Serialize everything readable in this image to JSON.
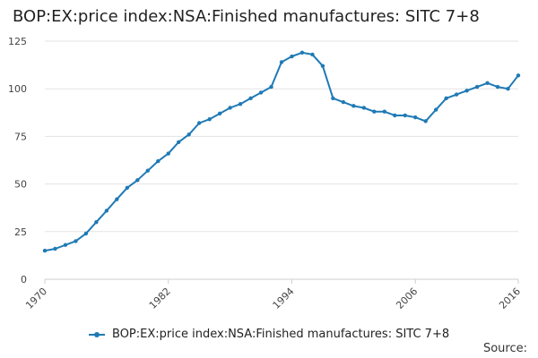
{
  "chart_data": {
    "type": "line",
    "title": "BOP:EX:price index:NSA:Finished manufactures: SITC 7+8",
    "xlabel": "",
    "ylabel": "",
    "ylim": [
      0,
      125
    ],
    "yticks": [
      0,
      25,
      50,
      75,
      100,
      125
    ],
    "xlim": [
      1970,
      2016
    ],
    "xticks": [
      1970,
      1982,
      1994,
      2006,
      2016
    ],
    "grid": true,
    "legend_position": "bottom",
    "series": [
      {
        "name": "BOP:EX:price index:NSA:Finished manufactures: SITC 7+8",
        "color": "#1f7ab5",
        "x": [
          1970,
          1971,
          1972,
          1973,
          1974,
          1975,
          1976,
          1977,
          1978,
          1979,
          1980,
          1981,
          1982,
          1983,
          1984,
          1985,
          1986,
          1987,
          1988,
          1989,
          1990,
          1991,
          1992,
          1993,
          1994,
          1995,
          1996,
          1997,
          1998,
          1999,
          2000,
          2001,
          2002,
          2003,
          2004,
          2005,
          2006,
          2007,
          2008,
          2009,
          2010,
          2011,
          2012,
          2013,
          2014,
          2015,
          2016
        ],
        "y": [
          15,
          16,
          18,
          20,
          24,
          30,
          36,
          42,
          48,
          52,
          57,
          62,
          66,
          72,
          76,
          82,
          84,
          87,
          90,
          92,
          95,
          98,
          101,
          114,
          117,
          119,
          118,
          112,
          95,
          93,
          91,
          90,
          88,
          88,
          86,
          86,
          85,
          83,
          89,
          95,
          97,
          99,
          101,
          103,
          101,
          100,
          107
        ]
      }
    ]
  },
  "source_label": "Source:"
}
